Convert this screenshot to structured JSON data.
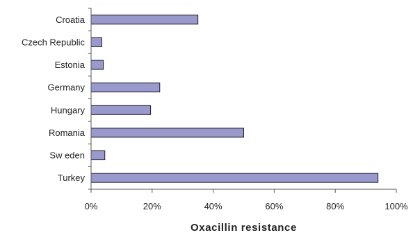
{
  "chart_data": {
    "type": "bar",
    "orientation": "horizontal",
    "categories": [
      "Croatia",
      "Czech Republic",
      "Estonia",
      "Germany",
      "Hungary",
      "Romania",
      "Sw eden",
      "Turkey"
    ],
    "values": [
      35,
      3.5,
      4,
      22.5,
      19.5,
      50,
      4.5,
      94
    ],
    "xlabel": "Oxacillin resistance",
    "ylabel": "",
    "title": "",
    "xlim": [
      0,
      100
    ],
    "xticks": [
      0,
      20,
      40,
      60,
      80,
      100
    ],
    "xtick_labels": [
      "0%",
      "20%",
      "40%",
      "60%",
      "80%",
      "100%"
    ],
    "grid": false,
    "legend": "none",
    "bar_color": "#9999cc",
    "bar_edge_color": "#1a1a33"
  }
}
